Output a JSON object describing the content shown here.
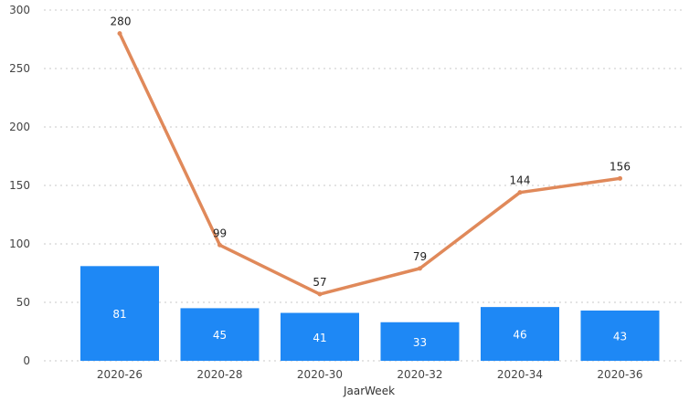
{
  "chart_data": {
    "type": "bar+line",
    "categories": [
      "2020-26",
      "2020-28",
      "2020-30",
      "2020-32",
      "2020-34",
      "2020-36"
    ],
    "series": [
      {
        "type": "bar",
        "values": [
          81,
          45,
          41,
          33,
          46,
          43
        ],
        "color": "#1e88f5"
      },
      {
        "type": "line",
        "values": [
          280,
          99,
          57,
          79,
          144,
          156
        ],
        "color": "#e0895a"
      }
    ],
    "xlabel": "JaarWeek",
    "ylabel": "",
    "ylim": [
      0,
      300
    ],
    "yticks": [
      0,
      50,
      100,
      150,
      200,
      250,
      300
    ],
    "grid": true,
    "legend": "none",
    "colors": {
      "bar": "#1e88f5",
      "line": "#e0895a",
      "grid": "#c8c8c8",
      "bar_label": "#ffffff",
      "line_label": "#222222"
    }
  }
}
